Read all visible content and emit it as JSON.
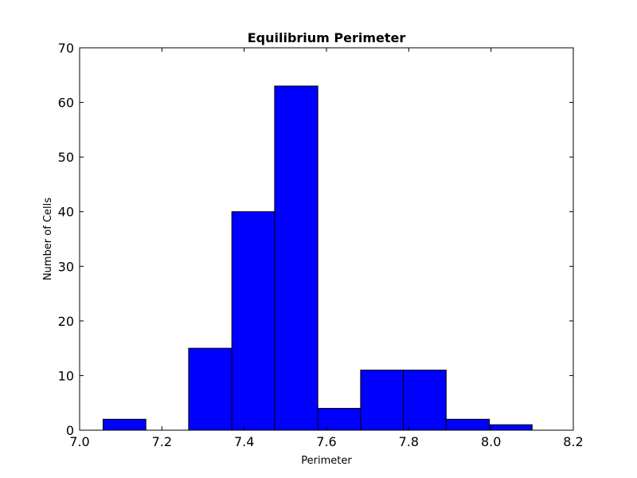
{
  "chart_data": {
    "type": "bar",
    "title": "Equilibrium Perimeter",
    "xlabel": "Perimeter",
    "ylabel": "Number of Cells",
    "xlim": [
      7.0,
      8.2
    ],
    "ylim": [
      0,
      70
    ],
    "xticks": [
      "7.0",
      "7.2",
      "7.4",
      "7.6",
      "7.8",
      "8.0",
      "8.2"
    ],
    "yticks": [
      "0",
      "10",
      "20",
      "30",
      "40",
      "50",
      "60",
      "70"
    ],
    "bins": [
      {
        "start": 7.057,
        "end": 7.161,
        "count": 2
      },
      {
        "start": 7.161,
        "end": 7.265,
        "count": 0
      },
      {
        "start": 7.265,
        "end": 7.37,
        "count": 15
      },
      {
        "start": 7.37,
        "end": 7.474,
        "count": 40
      },
      {
        "start": 7.474,
        "end": 7.579,
        "count": 63
      },
      {
        "start": 7.579,
        "end": 7.683,
        "count": 4
      },
      {
        "start": 7.683,
        "end": 7.787,
        "count": 11
      },
      {
        "start": 7.787,
        "end": 7.891,
        "count": 11
      },
      {
        "start": 7.891,
        "end": 7.996,
        "count": 2
      },
      {
        "start": 7.996,
        "end": 8.1,
        "count": 1
      }
    ],
    "bar_color": "#0000ff",
    "edge_color": "#000000",
    "grid": false
  }
}
